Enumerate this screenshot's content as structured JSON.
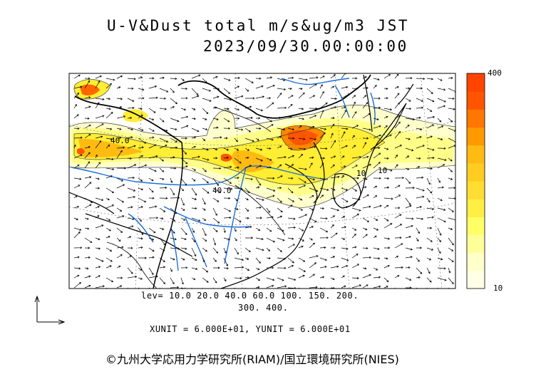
{
  "header": {
    "title_line1": "U-V&Dust total m/s&ug/m3 JST",
    "title_line2": "2023/09/30.00:00:00"
  },
  "map": {
    "contour_labels": [
      "40.0",
      "40.0",
      "10",
      "10"
    ]
  },
  "colorbar": {
    "max_label": "400",
    "min_label": "10",
    "colors": [
      "#ffffe6",
      "#ffffcc",
      "#ffff99",
      "#ffff66",
      "#ffee44",
      "#ffdd33",
      "#ffcc22",
      "#ffbb11",
      "#ff9900",
      "#ff7700",
      "#ff5500",
      "#ff4400"
    ]
  },
  "legend": {
    "levels_line1": "lev= 10.0 20.0 40.0 60.0 100. 150. 200.",
    "levels_line2": "300. 400."
  },
  "units_line": "XUNIT = 6.000E+01, YUNIT = 6.000E+01",
  "copyright": "©九州大学応用力学研究所(RIAM)/国立環境研究所(NIES)"
}
